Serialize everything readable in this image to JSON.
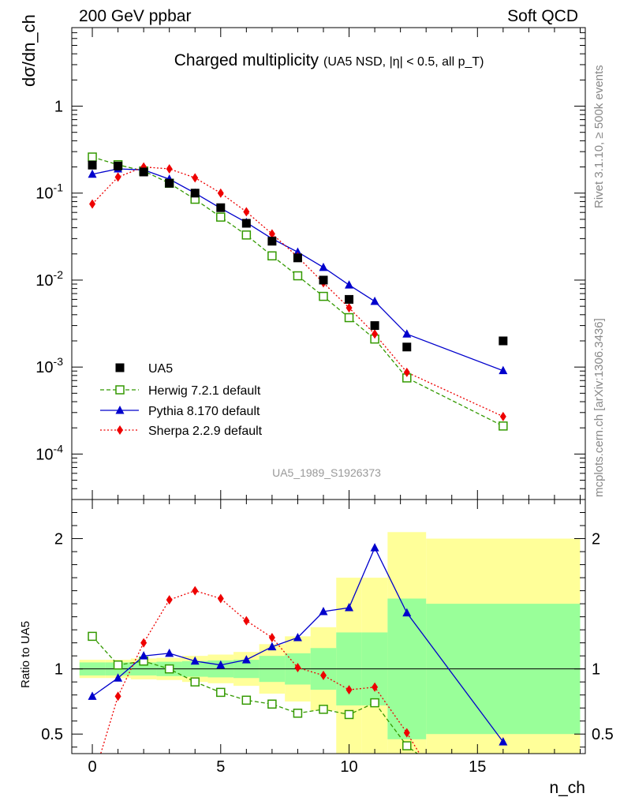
{
  "header": {
    "left": "200 GeV ppbar",
    "right": "Soft QCD"
  },
  "side_labels": {
    "top": "Rivet 3.1.10, ≥ 500k events",
    "bottom": "mcplots.cern.ch [arXiv:1306.3436]"
  },
  "watermark": "UA5_1989_S1926373",
  "colors": {
    "data": "#000000",
    "herwig": "#339900",
    "pythia": "#0000cc",
    "sherpa": "#ee0000",
    "band_inner": "#99ff99",
    "band_outer": "#ffff99"
  },
  "chart_data": [
    {
      "type": "scatter",
      "title": "Charged multiplicity",
      "subtitle": "(UA5 NSD, |η| < 0.5, all p_T)",
      "ylabel": "dσ/dn_ch",
      "yscale": "log",
      "xlim": [
        -0.8,
        19.2
      ],
      "ylim": [
        3e-05,
        8
      ],
      "ytick_labels": [
        "10^-4",
        "10^-3",
        "10^-2",
        "10^-1",
        "1"
      ],
      "legend_position": "left-middle",
      "series": [
        {
          "name": "UA5",
          "marker": "square",
          "x": [
            0,
            1,
            2,
            3,
            4,
            5,
            6,
            7,
            8,
            9,
            10,
            11,
            12.25,
            16
          ],
          "values": [
            0.21,
            0.205,
            0.175,
            0.13,
            0.1,
            0.068,
            0.045,
            0.028,
            0.018,
            0.01,
            0.006,
            0.003,
            0.0017,
            0.002
          ]
        },
        {
          "name": "Herwig 7.2.1 default",
          "marker": "open-square",
          "style": "dashed",
          "x": [
            0,
            1,
            2,
            3,
            4,
            5,
            6,
            7,
            8,
            9,
            10,
            11,
            12.25,
            16
          ],
          "values": [
            0.26,
            0.212,
            0.18,
            0.13,
            0.085,
            0.053,
            0.033,
            0.019,
            0.0112,
            0.0065,
            0.0037,
            0.0021,
            0.00075,
            0.00021
          ]
        },
        {
          "name": "Pythia 8.170 default",
          "marker": "triangle",
          "style": "solid",
          "x": [
            0,
            1,
            2,
            3,
            4,
            5,
            6,
            7,
            8,
            9,
            10,
            11,
            12.25,
            16
          ],
          "values": [
            0.165,
            0.19,
            0.185,
            0.145,
            0.1,
            0.067,
            0.046,
            0.03,
            0.021,
            0.014,
            0.0088,
            0.0057,
            0.0024,
            0.00091
          ]
        },
        {
          "name": "Sherpa 2.2.9 default",
          "marker": "diamond",
          "style": "dotted",
          "x": [
            0,
            1,
            2,
            3,
            4,
            5,
            6,
            7,
            8,
            9,
            10,
            11,
            12.25,
            16
          ],
          "values": [
            0.075,
            0.153,
            0.2,
            0.19,
            0.15,
            0.1,
            0.061,
            0.034,
            0.0185,
            0.0093,
            0.0048,
            0.0024,
            0.00087,
            0.00027
          ]
        }
      ]
    },
    {
      "type": "line",
      "xlabel": "n_ch",
      "ylabel": "Ratio to UA5",
      "xlim": [
        -0.8,
        19.2
      ],
      "ylim": [
        0.35,
        2.3
      ],
      "ytick_labels": [
        "0.5",
        "1",
        "2"
      ],
      "xtick_labels": [
        "0",
        "5",
        "10",
        "15"
      ],
      "reference_line": 1,
      "band_bins": [
        {
          "lo": -0.5,
          "hi": 0.5,
          "inner": [
            0.95,
            1.05
          ],
          "outer": [
            0.93,
            1.07
          ]
        },
        {
          "lo": 0.5,
          "hi": 1.5,
          "inner": [
            0.95,
            1.05
          ],
          "outer": [
            0.93,
            1.07
          ]
        },
        {
          "lo": 1.5,
          "hi": 2.5,
          "inner": [
            0.95,
            1.05
          ],
          "outer": [
            0.92,
            1.08
          ]
        },
        {
          "lo": 2.5,
          "hi": 3.5,
          "inner": [
            0.945,
            1.055
          ],
          "outer": [
            0.915,
            1.085
          ]
        },
        {
          "lo": 3.5,
          "hi": 4.5,
          "inner": [
            0.94,
            1.06
          ],
          "outer": [
            0.9,
            1.1
          ]
        },
        {
          "lo": 4.5,
          "hi": 5.5,
          "inner": [
            0.935,
            1.065
          ],
          "outer": [
            0.89,
            1.11
          ]
        },
        {
          "lo": 5.5,
          "hi": 6.5,
          "inner": [
            0.93,
            1.07
          ],
          "outer": [
            0.87,
            1.13
          ]
        },
        {
          "lo": 6.5,
          "hi": 7.5,
          "inner": [
            0.9,
            1.1
          ],
          "outer": [
            0.81,
            1.19
          ]
        },
        {
          "lo": 7.5,
          "hi": 8.5,
          "inner": [
            0.88,
            1.12
          ],
          "outer": [
            0.75,
            1.25
          ]
        },
        {
          "lo": 8.5,
          "hi": 9.5,
          "inner": [
            0.84,
            1.16
          ],
          "outer": [
            0.68,
            1.32
          ]
        },
        {
          "lo": 9.5,
          "hi": 10.5,
          "inner": [
            0.72,
            1.28
          ],
          "outer": [
            0.3,
            1.7
          ]
        },
        {
          "lo": 10.5,
          "hi": 11.5,
          "inner": [
            0.72,
            1.28
          ],
          "outer": [
            0.3,
            1.7
          ]
        },
        {
          "lo": 11.5,
          "hi": 13.0,
          "inner": [
            0.46,
            1.54
          ],
          "outer": [
            0.3,
            2.05
          ]
        },
        {
          "lo": 13.0,
          "hi": 19.0,
          "inner": [
            0.5,
            1.5
          ],
          "outer": [
            0.3,
            2.0
          ]
        }
      ],
      "series": [
        {
          "name": "Herwig 7.2.1 default",
          "marker": "open-square",
          "style": "dashed",
          "x": [
            0,
            1,
            2,
            3,
            4,
            5,
            6,
            7,
            8,
            9,
            10,
            11,
            12.25,
            13.0
          ],
          "values": [
            1.25,
            1.03,
            1.06,
            1.0,
            0.9,
            0.82,
            0.76,
            0.73,
            0.66,
            0.69,
            0.65,
            0.74,
            0.41,
            0.3
          ]
        },
        {
          "name": "Pythia 8.170 default",
          "marker": "triangle",
          "style": "solid",
          "x": [
            0,
            1,
            2,
            3,
            4,
            5,
            6,
            7,
            8,
            9,
            10,
            11,
            12.25,
            16
          ],
          "values": [
            0.79,
            0.93,
            1.1,
            1.12,
            1.06,
            1.03,
            1.07,
            1.17,
            1.24,
            1.44,
            1.47,
            1.93,
            1.43,
            0.44
          ]
        },
        {
          "name": "Sherpa 2.2.9 default",
          "marker": "diamond",
          "style": "dotted",
          "x": [
            0.25,
            1,
            2,
            3,
            4,
            5,
            6,
            7,
            8,
            9,
            10,
            11,
            12.25,
            12.9
          ],
          "values": [
            0.3,
            0.79,
            1.2,
            1.53,
            1.6,
            1.54,
            1.37,
            1.24,
            1.01,
            0.95,
            0.84,
            0.86,
            0.51,
            0.3
          ]
        }
      ]
    }
  ]
}
